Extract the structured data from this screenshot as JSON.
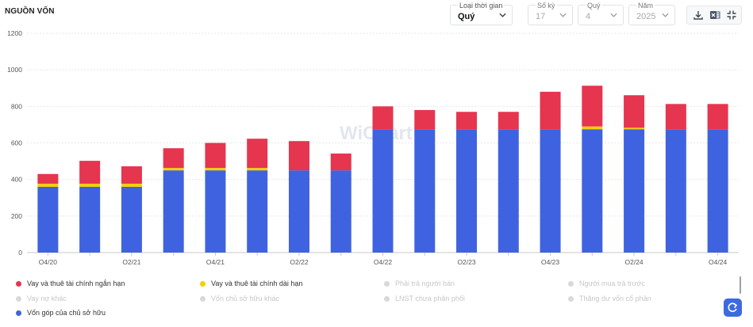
{
  "page": {
    "title": "NGUỒN VỐN"
  },
  "filters": {
    "period": {
      "label": "Loại thời gian",
      "value": "Quý"
    },
    "count": {
      "label": "Số kỳ",
      "value": "17"
    },
    "quarter": {
      "label": "Quý",
      "value": "4"
    },
    "year": {
      "label": "Năm",
      "value": "2025"
    }
  },
  "toolbar_icons": [
    "download-icon",
    "excel-icon",
    "collapse-icon"
  ],
  "watermark": "WiChart",
  "colors": {
    "short_term": "#e6354f",
    "long_term": "#f5d000",
    "equity": "#3f63e0",
    "inactive": "#d9d9d9",
    "accent": "#3d6ae0"
  },
  "chart_data": {
    "type": "bar",
    "stacked": true,
    "title": "NGUỒN VỐN",
    "categories": [
      "Q4/20",
      "Q1/21",
      "Q2/21",
      "Q3/21",
      "Q4/21",
      "Q1/22",
      "Q2/22",
      "Q3/22",
      "Q4/22",
      "Q1/23",
      "Q2/23",
      "Q3/23",
      "Q4/23",
      "Q1/24",
      "Q2/24",
      "Q3/24",
      "Q4/24"
    ],
    "tick_labels": [
      "Q4/20",
      "",
      "Q2/21",
      "",
      "Q4/21",
      "",
      "Q2/22",
      "",
      "Q4/22",
      "",
      "Q2/23",
      "",
      "Q4/23",
      "",
      "Q2/24",
      "",
      "Q4/24"
    ],
    "ylim": [
      0,
      1200
    ],
    "yticks": [
      0,
      200,
      400,
      600,
      800,
      1000,
      1200
    ],
    "grid": true,
    "legend_position": "bottom",
    "series": [
      {
        "name": "Vốn góp của chủ sở hữu",
        "color": "#3f63e0",
        "values": [
          360,
          360,
          360,
          450,
          450,
          450,
          450,
          450,
          675,
          675,
          675,
          675,
          675,
          675,
          675,
          675,
          675
        ]
      },
      {
        "name": "Vay và thuê tài chính dài hạn",
        "color": "#f5d000",
        "values": [
          17,
          17,
          17,
          13,
          13,
          13,
          0,
          0,
          0,
          0,
          0,
          0,
          0,
          15,
          8,
          0,
          0
        ]
      },
      {
        "name": "Vay và thuê tài chính ngắn hạn",
        "color": "#e6354f",
        "values": [
          53,
          125,
          95,
          108,
          137,
          160,
          160,
          92,
          125,
          105,
          95,
          95,
          205,
          223,
          178,
          138,
          138
        ]
      }
    ],
    "legend": [
      {
        "name": "Vay và thuê tài chính ngắn hạn",
        "active": true,
        "color": "#e6354f"
      },
      {
        "name": "Vay và thuê tài chính dài hạn",
        "active": true,
        "color": "#f5d000"
      },
      {
        "name": "Phải trả người bán",
        "active": false
      },
      {
        "name": "Người mua trả trước",
        "active": false
      },
      {
        "name": "Vay nợ khác",
        "active": false
      },
      {
        "name": "Vốn chủ sở hữu khác",
        "active": false
      },
      {
        "name": "LNST chưa phân phối",
        "active": false
      },
      {
        "name": "Thặng dư vốn cổ phần",
        "active": false
      },
      {
        "name": "Vốn góp của chủ sở hữu",
        "active": true,
        "color": "#3f63e0"
      }
    ]
  }
}
